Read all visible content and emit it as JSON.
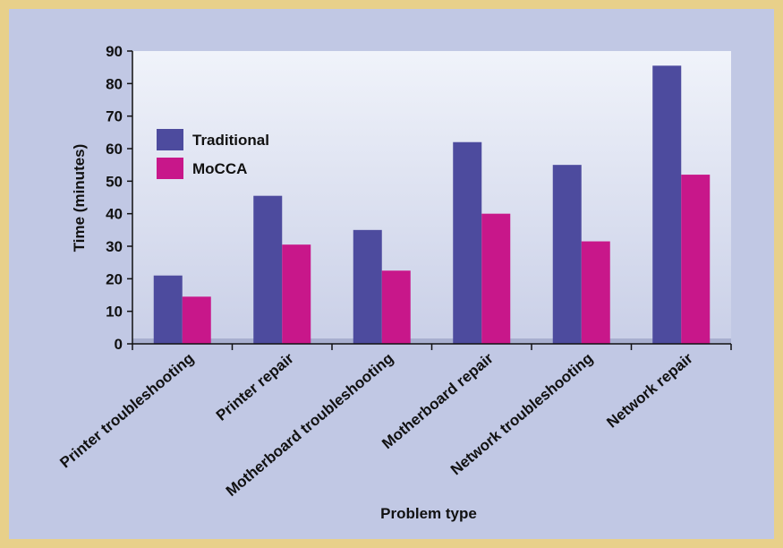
{
  "chart_data": {
    "type": "bar",
    "title": "",
    "xlabel": "Problem type",
    "ylabel": "Time (minutes)",
    "ylim": [
      0,
      90
    ],
    "yticks": [
      "0",
      "10",
      "20",
      "30",
      "40",
      "50",
      "60",
      "70",
      "80",
      "90"
    ],
    "categories": [
      "Printer troubleshooting",
      "Printer repair",
      "Motherboard troubleshooting",
      "Motherboard repair",
      "Network troubleshooting",
      "Network repair"
    ],
    "series": [
      {
        "name": "Traditional",
        "values": [
          21,
          45.5,
          35,
          62,
          55,
          85.5
        ]
      },
      {
        "name": "MoCCA",
        "values": [
          14.5,
          30.5,
          22.5,
          40,
          31.5,
          52
        ]
      }
    ],
    "legend": "top-left",
    "grid": false
  },
  "colors": {
    "traditional": "#4d4b9e",
    "mocca": "#c8178a",
    "border": "#e8d08a",
    "background": "#c1c8e4",
    "plot_top": "#f0f3fa",
    "plot_bottom": "#c9cfe7",
    "floor": "#a8afcf"
  }
}
